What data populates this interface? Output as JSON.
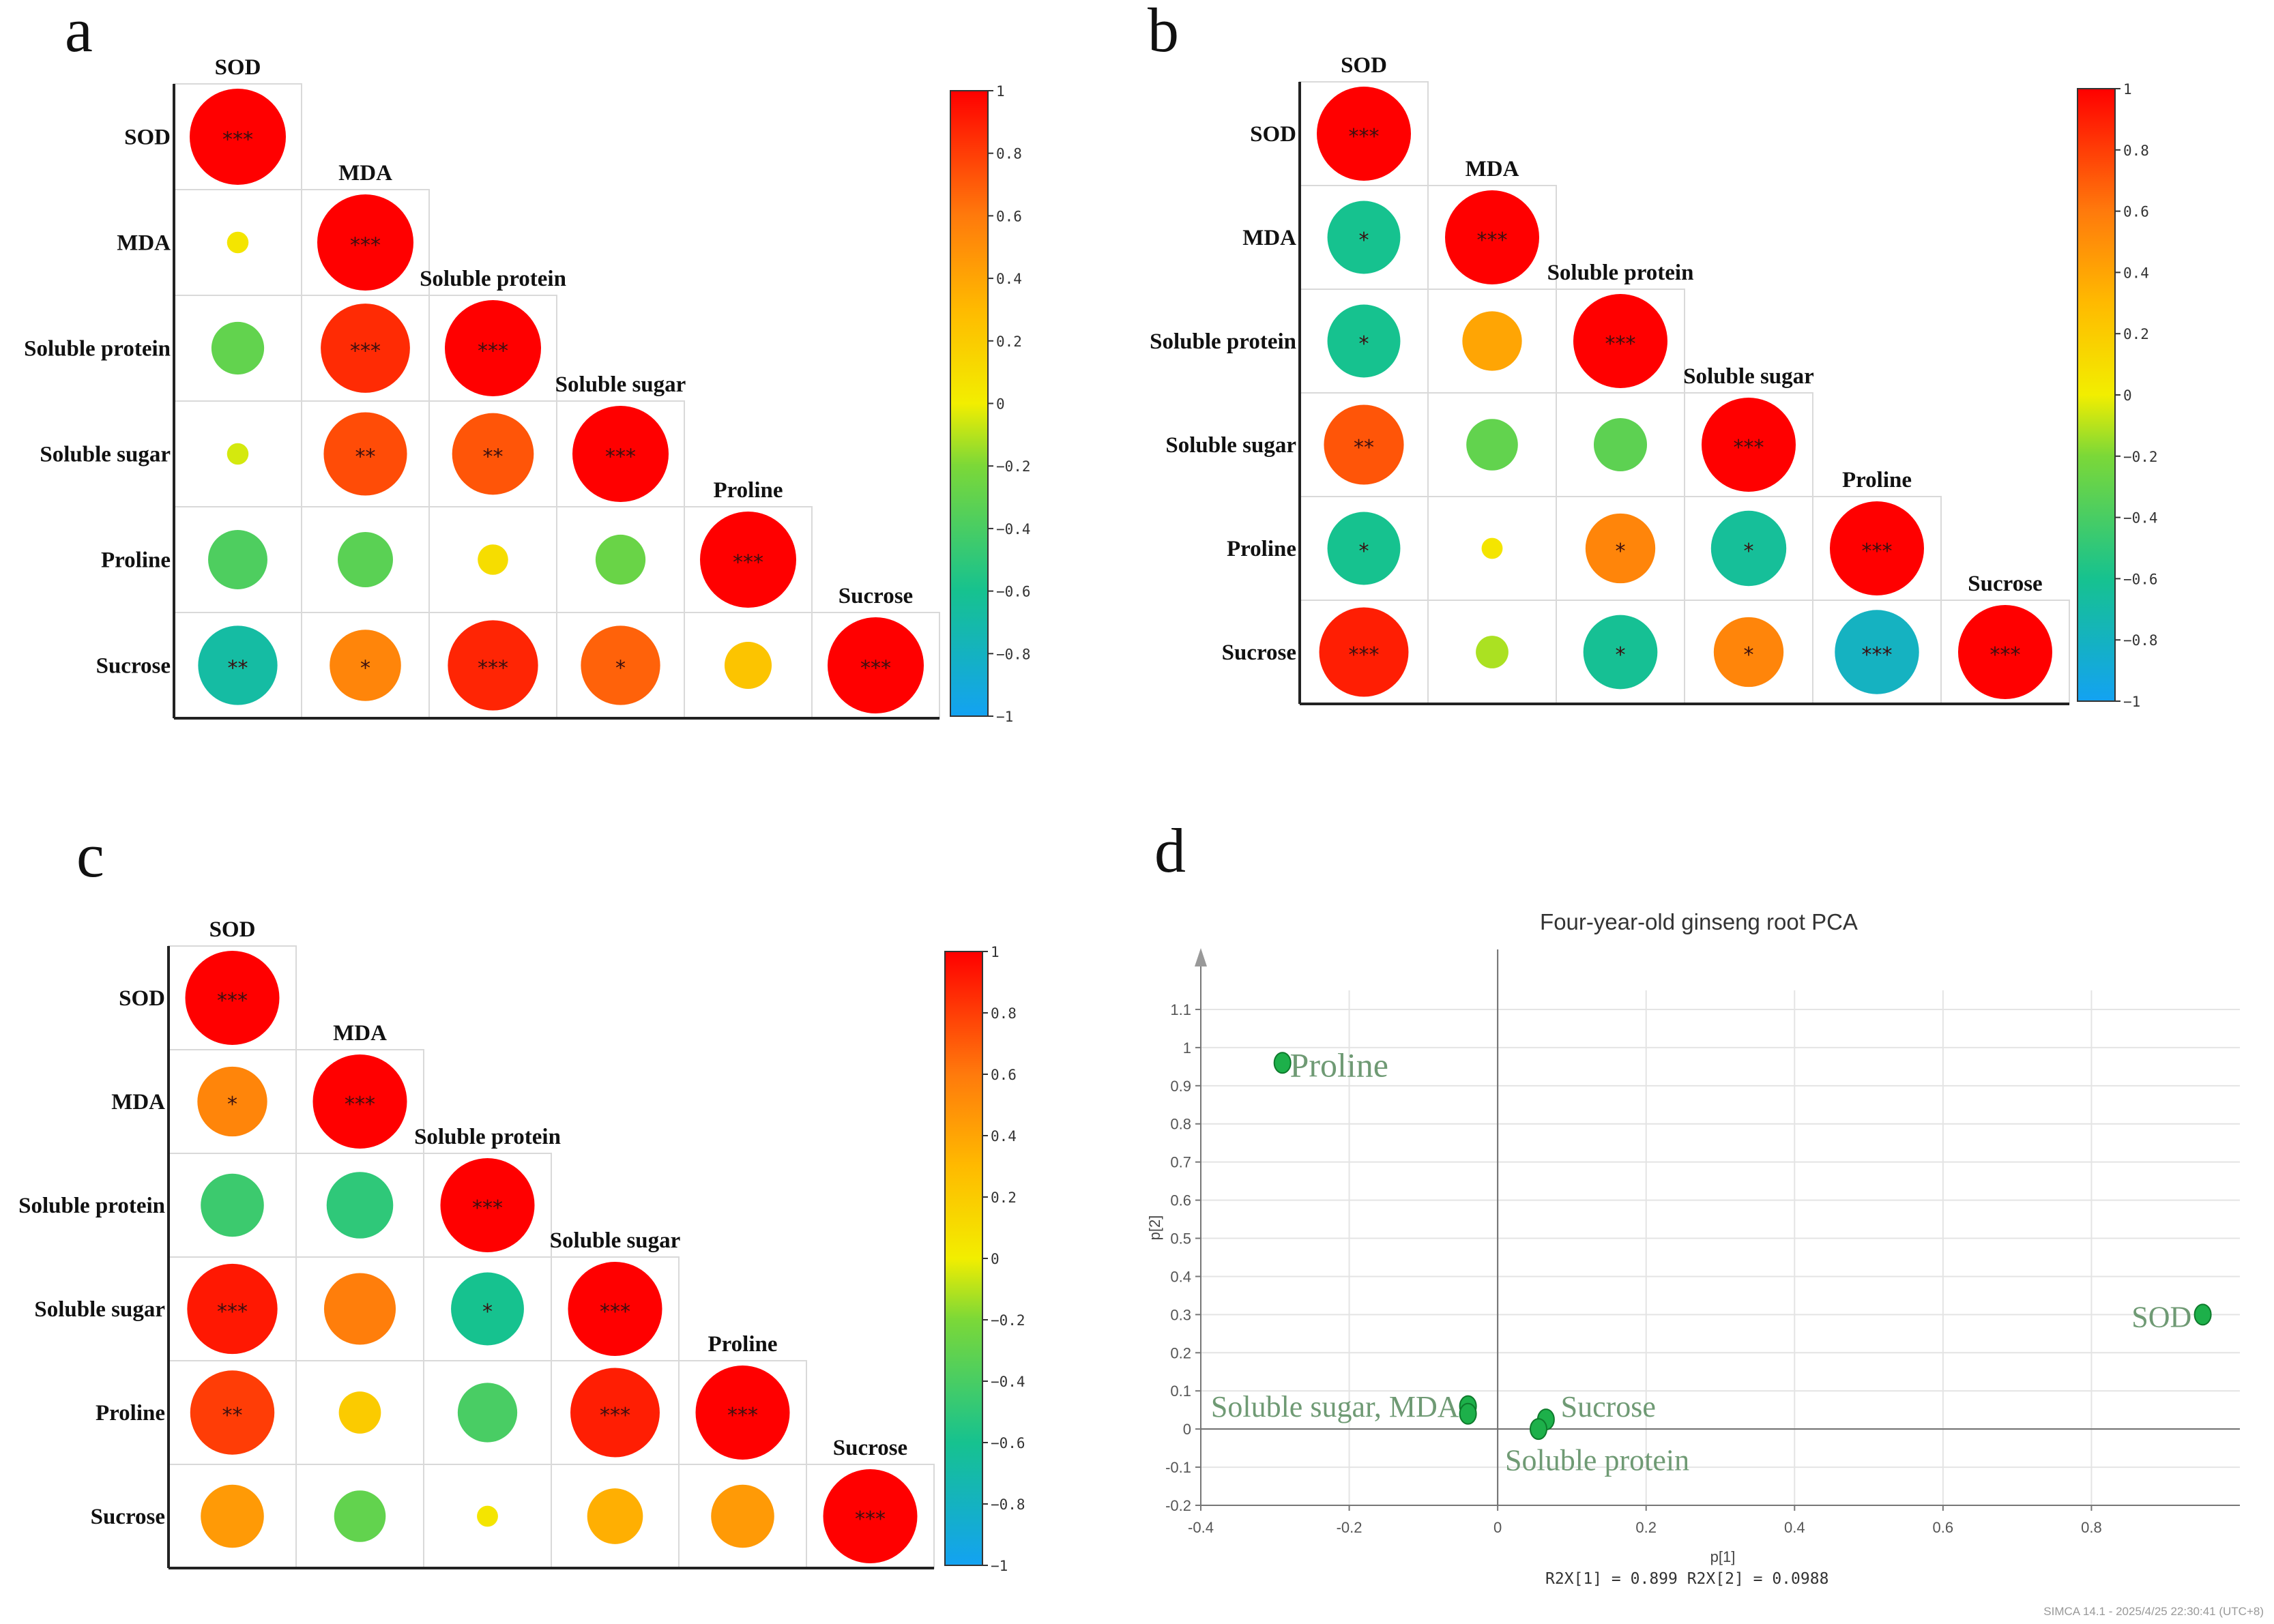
{
  "color_scale": {
    "stops": [
      {
        "v": -1.0,
        "c": "#13a2f2"
      },
      {
        "v": -0.6,
        "c": "#16c28f"
      },
      {
        "v": -0.2,
        "c": "#7bd838"
      },
      {
        "v": 0.0,
        "c": "#f2ee00"
      },
      {
        "v": 0.3,
        "c": "#ffba00"
      },
      {
        "v": 0.6,
        "c": "#ff7a0c"
      },
      {
        "v": 1.0,
        "c": "#ff0000"
      }
    ],
    "ticks": [
      "1",
      "0.8",
      "0.6",
      "0.4",
      "0.2",
      "0",
      "−0.2",
      "−0.4",
      "−0.6",
      "−0.8",
      "−1"
    ],
    "tick_values": [
      1,
      0.8,
      0.6,
      0.4,
      0.2,
      0,
      -0.2,
      -0.4,
      -0.6,
      -0.8,
      -1
    ]
  },
  "chart_data": [
    {
      "panel": "a",
      "type": "heatmap",
      "variables": [
        "SOD",
        "MDA",
        "Soluble protein",
        "Soluble sugar",
        "Proline",
        "Sucrose"
      ],
      "correlations": [
        [
          1
        ],
        [
          0.05,
          1
        ],
        [
          -0.3,
          0.86,
          1
        ],
        [
          -0.05,
          0.75,
          0.72,
          1
        ],
        [
          -0.38,
          -0.33,
          0.1,
          -0.27,
          1
        ],
        [
          -0.68,
          0.55,
          0.88,
          0.68,
          0.24,
          1
        ]
      ],
      "significance": [
        [
          "***"
        ],
        [
          "",
          "***"
        ],
        [
          "",
          "***",
          "***"
        ],
        [
          "",
          "**",
          "**",
          "***"
        ],
        [
          "",
          "",
          "",
          "",
          "***"
        ],
        [
          "**",
          "*",
          "***",
          "*",
          "",
          "***"
        ]
      ]
    },
    {
      "panel": "b",
      "type": "heatmap",
      "variables": [
        "SOD",
        "MDA",
        "Soluble protein",
        "Soluble sugar",
        "Proline",
        "Sucrose"
      ],
      "correlations": [
        [
          1
        ],
        [
          -0.6,
          1
        ],
        [
          -0.6,
          0.4,
          1
        ],
        [
          0.72,
          -0.3,
          -0.32,
          1
        ],
        [
          -0.6,
          0.05,
          0.55,
          -0.64,
          1
        ],
        [
          0.9,
          -0.12,
          -0.62,
          0.55,
          -0.8,
          1
        ]
      ],
      "significance": [
        [
          "***"
        ],
        [
          "*",
          "***"
        ],
        [
          "*",
          "",
          "***"
        ],
        [
          "**",
          "",
          "",
          "***"
        ],
        [
          "*",
          "",
          "*",
          "*",
          "***"
        ],
        [
          "***",
          "",
          "*",
          "*",
          "***",
          "***"
        ]
      ]
    },
    {
      "panel": "c",
      "type": "heatmap",
      "variables": [
        "SOD",
        "MDA",
        "Soluble protein",
        "Soluble sugar",
        "Proline",
        "Sucrose"
      ],
      "correlations": [
        [
          1
        ],
        [
          0.55,
          1
        ],
        [
          -0.45,
          -0.5,
          1
        ],
        [
          0.92,
          0.58,
          -0.6,
          1
        ],
        [
          0.8,
          0.2,
          -0.4,
          0.9,
          1
        ],
        [
          0.45,
          -0.3,
          0.05,
          0.35,
          0.45,
          1
        ]
      ],
      "significance": [
        [
          "***"
        ],
        [
          "*",
          "***"
        ],
        [
          "",
          "",
          "***"
        ],
        [
          "***",
          "",
          "*",
          "***"
        ],
        [
          "**",
          "",
          "",
          "***",
          "***"
        ],
        [
          "",
          "",
          "",
          "",
          "",
          "***"
        ]
      ]
    },
    {
      "panel": "d",
      "type": "scatter",
      "title": "Four-year-old ginseng root PCA",
      "xlabel": "p[1]",
      "ylabel": "p[2]",
      "xlim": [
        -0.4,
        1.0
      ],
      "ylim": [
        -0.2,
        1.15
      ],
      "x_ticks": [
        "-0.4",
        "-0.2",
        "0",
        "0.2",
        "0.4",
        "0.6",
        "0.8"
      ],
      "x_tick_values": [
        -0.4,
        -0.2,
        0,
        0.2,
        0.4,
        0.6,
        0.8
      ],
      "y_ticks": [
        "1.1",
        "1",
        "0.9",
        "0.8",
        "0.7",
        "0.6",
        "0.5",
        "0.4",
        "0.3",
        "0.2",
        "0.1",
        "0",
        "-0.1",
        "-0.2"
      ],
      "y_tick_values": [
        1.1,
        1,
        0.9,
        0.8,
        0.7,
        0.6,
        0.5,
        0.4,
        0.3,
        0.2,
        0.1,
        0,
        -0.1,
        -0.2
      ],
      "points": [
        {
          "x": -0.29,
          "y": 0.96
        },
        {
          "x": 0.95,
          "y": 0.3
        },
        {
          "x": -0.04,
          "y": 0.06
        },
        {
          "x": -0.04,
          "y": 0.04
        },
        {
          "x": 0.065,
          "y": 0.025
        },
        {
          "x": 0.055,
          "y": 0.0
        }
      ],
      "point_labels": [
        {
          "text": "Proline",
          "x": -0.28,
          "y": 0.955,
          "anchor": "start",
          "size": "large"
        },
        {
          "text": "SOD",
          "x": 0.935,
          "y": 0.295,
          "anchor": "end",
          "size": "medium"
        },
        {
          "text": "Soluble sugar, MDA",
          "x": -0.052,
          "y": 0.06,
          "anchor": "end",
          "size": "medium"
        },
        {
          "text": "Sucrose",
          "x": 0.085,
          "y": 0.06,
          "anchor": "start",
          "size": "medium"
        },
        {
          "text": "Soluble protein",
          "x": 0.01,
          "y": -0.08,
          "anchor": "start",
          "size": "medium"
        }
      ],
      "stats": "R2X[1] = 0.899  R2X[2] = 0.0988",
      "footer": "SIMCA 14.1 - 2025/4/25 22:30:41 (UTC+8)"
    }
  ]
}
